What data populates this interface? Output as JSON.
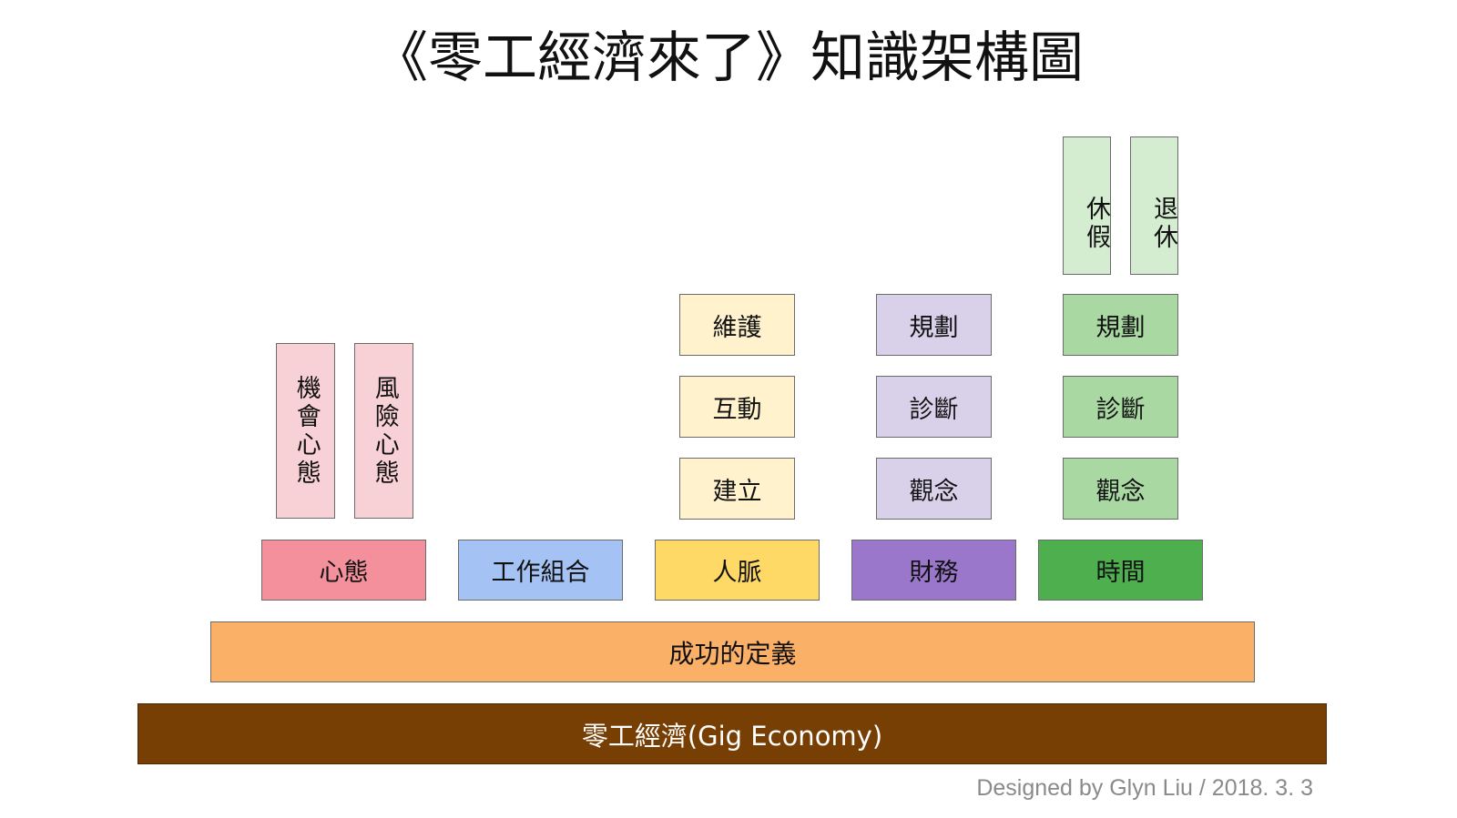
{
  "title": "《零工經濟來了》知識架構圖",
  "colors": {
    "mindset": "#f4909b",
    "mindset_light": "#f8d1d6",
    "work": "#a4c2f4",
    "network": "#ffd966",
    "network_light": "#fff2cc",
    "finance": "#9a77cb",
    "finance_light": "#d9d0ea",
    "time": "#4daf4e",
    "time_light": "#a9d8a3",
    "time_lighter": "#d4ecd0",
    "success": "#fbb067",
    "base": "#783f04"
  },
  "pillars": {
    "mindset": {
      "label": "心態",
      "subs": [
        "機會心態",
        "風險心態"
      ]
    },
    "work": {
      "label": "工作組合"
    },
    "network": {
      "label": "人脈",
      "subs": [
        "維護",
        "互動",
        "建立"
      ]
    },
    "finance": {
      "label": "財務",
      "subs": [
        "規劃",
        "診斷",
        "觀念"
      ]
    },
    "time": {
      "label": "時間",
      "subs": [
        "規劃",
        "診斷",
        "觀念"
      ],
      "top": [
        "休假",
        "退休"
      ]
    }
  },
  "success_definition": "成功的定義",
  "foundation": "零工經濟(Gig Economy)",
  "credit": "Designed by Glyn Liu / 2018. 3. 3"
}
